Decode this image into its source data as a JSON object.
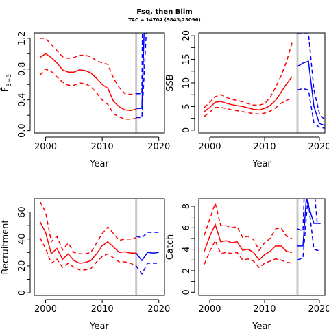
{
  "title": "Fsq, then Blim",
  "subtitle": "TAC = 14704 (9843;23096)",
  "colors": {
    "hist": "#ff0000",
    "proj": "#0000ff",
    "vline": "#c8c8c8",
    "axis": "#000000"
  },
  "chart_data": [
    {
      "id": "F",
      "type": "line",
      "xlabel": "Year",
      "ylabel": "F̄",
      "ylabel_subscript": "3−5",
      "xlim": [
        1998,
        2021
      ],
      "ylim": [
        -0.03,
        1.27
      ],
      "xticks": [
        2000,
        2010,
        2020
      ],
      "yticks": [
        0.0,
        0.4,
        0.8,
        1.2
      ],
      "ytick_labels": [
        "0.0",
        "0.4",
        "0.8",
        "1.2"
      ],
      "ref_year": 2016,
      "series": [
        {
          "role": "hist-median",
          "x": [
            1999,
            2000,
            2001,
            2002,
            2003,
            2004,
            2005,
            2006,
            2007,
            2008,
            2009,
            2010,
            2011,
            2012,
            2013,
            2014,
            2015,
            2016
          ],
          "y": [
            0.95,
            1.0,
            0.95,
            0.88,
            0.79,
            0.76,
            0.76,
            0.79,
            0.78,
            0.75,
            0.68,
            0.6,
            0.55,
            0.38,
            0.31,
            0.27,
            0.26,
            0.28
          ]
        },
        {
          "role": "hist-upper",
          "x": [
            1999,
            2000,
            2001,
            2002,
            2003,
            2004,
            2005,
            2006,
            2007,
            2008,
            2009,
            2010,
            2011,
            2012,
            2013,
            2014,
            2015,
            2016
          ],
          "y": [
            1.2,
            1.2,
            1.12,
            1.04,
            0.96,
            0.94,
            0.95,
            0.98,
            0.98,
            0.96,
            0.91,
            0.88,
            0.86,
            0.68,
            0.56,
            0.48,
            0.47,
            0.49
          ]
        },
        {
          "role": "hist-lower",
          "x": [
            1999,
            2000,
            2001,
            2002,
            2003,
            2004,
            2005,
            2006,
            2007,
            2008,
            2009,
            2010,
            2011,
            2012,
            2013,
            2014,
            2015,
            2016
          ],
          "y": [
            0.72,
            0.8,
            0.77,
            0.7,
            0.63,
            0.59,
            0.59,
            0.62,
            0.61,
            0.57,
            0.49,
            0.4,
            0.34,
            0.22,
            0.18,
            0.15,
            0.15,
            0.16
          ]
        },
        {
          "role": "proj-median",
          "x": [
            2016,
            2017,
            2017.4
          ],
          "y": [
            0.29,
            0.29,
            1.3
          ]
        },
        {
          "role": "proj-upper",
          "x": [
            2016,
            2017,
            2017.1
          ],
          "y": [
            0.48,
            0.48,
            1.3
          ]
        },
        {
          "role": "proj-lower",
          "x": [
            2016,
            2017,
            2017.8
          ],
          "y": [
            0.17,
            0.17,
            1.3
          ]
        }
      ]
    },
    {
      "id": "SSB",
      "type": "line",
      "xlabel": "Year",
      "ylabel": "SSB",
      "xlim": [
        1998,
        2021
      ],
      "ylim": [
        -0.6,
        20.6
      ],
      "xticks": [
        2000,
        2010,
        2020
      ],
      "yticks": [
        0,
        5,
        10,
        15,
        20
      ],
      "ytick_labels": [
        "0",
        "5",
        "10",
        "15",
        "20"
      ],
      "ref_year": 2016,
      "series": [
        {
          "role": "hist-median",
          "x": [
            1999,
            2000,
            2001,
            2002,
            2003,
            2004,
            2005,
            2006,
            2007,
            2008,
            2009,
            2010,
            2011,
            2012,
            2013,
            2014,
            2015
          ],
          "y": [
            3.9,
            4.8,
            5.9,
            6.1,
            5.7,
            5.4,
            5.2,
            5.0,
            4.7,
            4.4,
            4.3,
            4.6,
            5.2,
            6.3,
            8.0,
            9.8,
            11.3
          ]
        },
        {
          "role": "hist-upper",
          "x": [
            1999,
            2000,
            2001,
            2002,
            2003,
            2004,
            2005,
            2006,
            2007,
            2008,
            2009,
            2010,
            2011,
            2012,
            2013,
            2014,
            2015
          ],
          "y": [
            4.8,
            5.9,
            7.1,
            7.5,
            7.0,
            6.5,
            6.3,
            6.0,
            5.6,
            5.3,
            5.3,
            5.6,
            6.9,
            9.0,
            11.5,
            14.5,
            18.5
          ]
        },
        {
          "role": "hist-lower",
          "x": [
            1999,
            2000,
            2001,
            2002,
            2003,
            2004,
            2005,
            2006,
            2007,
            2008,
            2009,
            2010,
            2011,
            2012,
            2013,
            2014,
            2015
          ],
          "y": [
            2.9,
            3.8,
            4.8,
            4.8,
            4.6,
            4.3,
            4.1,
            3.9,
            3.7,
            3.5,
            3.4,
            3.6,
            4.0,
            4.7,
            5.7,
            6.3,
            6.8
          ]
        },
        {
          "role": "proj-median",
          "x": [
            2016,
            2017,
            2018,
            2019,
            2020,
            2021
          ],
          "y": [
            13.5,
            14.2,
            14.6,
            5.0,
            1.4,
            1.0
          ]
        },
        {
          "role": "proj-upper",
          "x": [
            2016,
            2017,
            2018,
            2019,
            2020,
            2021
          ],
          "y": [
            20.6,
            20.6,
            20.6,
            8.5,
            3.5,
            2.1
          ]
        },
        {
          "role": "proj-lower",
          "x": [
            2016,
            2017,
            2018,
            2019,
            2020,
            2021
          ],
          "y": [
            8.5,
            8.8,
            8.5,
            1.5,
            0.6,
            0.4
          ]
        }
      ]
    },
    {
      "id": "Recruitment",
      "type": "line",
      "xlabel": "Year",
      "ylabel": "Recruitment",
      "xlim": [
        1998,
        2021
      ],
      "ylim": [
        -2,
        70
      ],
      "xticks": [
        2000,
        2010,
        2020
      ],
      "yticks": [
        0,
        20,
        40,
        60
      ],
      "ytick_labels": [
        "0",
        "20",
        "40",
        "60"
      ],
      "ref_year": 2016,
      "series": [
        {
          "role": "hist-median",
          "x": [
            1999,
            2000,
            2001,
            2002,
            2003,
            2004,
            2005,
            2006,
            2007,
            2008,
            2009,
            2010,
            2011,
            2012,
            2013,
            2014,
            2015,
            2016
          ],
          "y": [
            53,
            45,
            29,
            33,
            25,
            29,
            24,
            22,
            22.5,
            24,
            29,
            35,
            38,
            34,
            30,
            30.5,
            29.5,
            29.5
          ]
        },
        {
          "role": "hist-upper",
          "x": [
            1999,
            2000,
            2001,
            2002,
            2003,
            2004,
            2005,
            2006,
            2007,
            2008,
            2009,
            2010,
            2011,
            2012,
            2013,
            2014,
            2015,
            2016
          ],
          "y": [
            68,
            60,
            38,
            42,
            32,
            37,
            30,
            29,
            29,
            30,
            37,
            44,
            49,
            44,
            39,
            40,
            40,
            41
          ]
        },
        {
          "role": "hist-lower",
          "x": [
            1999,
            2000,
            2001,
            2002,
            2003,
            2004,
            2005,
            2006,
            2007,
            2008,
            2009,
            2010,
            2011,
            2012,
            2013,
            2014,
            2015,
            2016
          ],
          "y": [
            41,
            33,
            22,
            25,
            19,
            22,
            19,
            17,
            17,
            18,
            23,
            27,
            29,
            26,
            23,
            23,
            22,
            20
          ]
        },
        {
          "role": "proj-median",
          "x": [
            2016,
            2017,
            2018,
            2019,
            2020
          ],
          "y": [
            29.5,
            24,
            30,
            29.5,
            30
          ]
        },
        {
          "role": "proj-upper",
          "x": [
            2016,
            2017,
            2018,
            2019,
            2020
          ],
          "y": [
            42,
            41,
            45,
            45,
            45
          ]
        },
        {
          "role": "proj-lower",
          "x": [
            2016,
            2017,
            2018,
            2019,
            2020
          ],
          "y": [
            20,
            14,
            22,
            22,
            22
          ]
        }
      ]
    },
    {
      "id": "Catch",
      "type": "line",
      "xlabel": "Year",
      "ylabel": "Catch",
      "xlim": [
        1998,
        2021
      ],
      "ylim": [
        -0.3,
        8.7
      ],
      "xticks": [
        2000,
        2010,
        2020
      ],
      "yticks": [
        0,
        2,
        4,
        6,
        8
      ],
      "ytick_labels": [
        "0",
        "2",
        "4",
        "6",
        "8"
      ],
      "ref_year": 2016,
      "series": [
        {
          "role": "hist-median",
          "x": [
            1999,
            2000,
            2001,
            2002,
            2003,
            2004,
            2005,
            2006,
            2007,
            2008,
            2009,
            2010,
            2011,
            2012,
            2013,
            2014,
            2015
          ],
          "y": [
            3.8,
            5.2,
            6.3,
            4.7,
            4.8,
            4.6,
            4.7,
            3.9,
            4.0,
            3.7,
            3.0,
            3.5,
            3.8,
            4.3,
            4.3,
            3.8,
            3.7
          ]
        },
        {
          "role": "hist-upper",
          "x": [
            1999,
            2000,
            2001,
            2002,
            2003,
            2004,
            2005,
            2006,
            2007,
            2008,
            2009,
            2010,
            2011,
            2012,
            2013,
            2014,
            2015
          ],
          "y": [
            5.3,
            6.8,
            8.3,
            6.2,
            6.2,
            6.0,
            6.1,
            5.1,
            5.2,
            4.9,
            3.9,
            4.6,
            5.0,
            5.9,
            6.0,
            5.2,
            5.0
          ]
        },
        {
          "role": "hist-lower",
          "x": [
            1999,
            2000,
            2001,
            2002,
            2003,
            2004,
            2005,
            2006,
            2007,
            2008,
            2009,
            2010,
            2011,
            2012,
            2013,
            2014,
            2015
          ],
          "y": [
            2.6,
            3.8,
            4.8,
            3.6,
            3.7,
            3.6,
            3.7,
            3.0,
            3.1,
            2.9,
            2.3,
            2.7,
            2.9,
            3.1,
            3.0,
            2.8,
            2.7
          ]
        },
        {
          "role": "proj-median",
          "x": [
            2016,
            2017,
            2017.6,
            2019,
            2020.2
          ],
          "y": [
            4.3,
            4.3,
            8.7,
            6.4,
            6.4
          ]
        },
        {
          "role": "proj-upper",
          "x": [
            2016,
            2017,
            2017.2,
            2019.2,
            2019.6,
            2020.2
          ],
          "y": [
            5.9,
            5.7,
            8.7,
            8.7,
            6.4,
            6.4
          ]
        },
        {
          "role": "proj-lower",
          "x": [
            2016,
            2017,
            2017.9,
            2019,
            2019.6,
            2020.2
          ],
          "y": [
            3.0,
            3.2,
            8.7,
            4.0,
            3.9,
            3.9
          ]
        }
      ]
    }
  ]
}
